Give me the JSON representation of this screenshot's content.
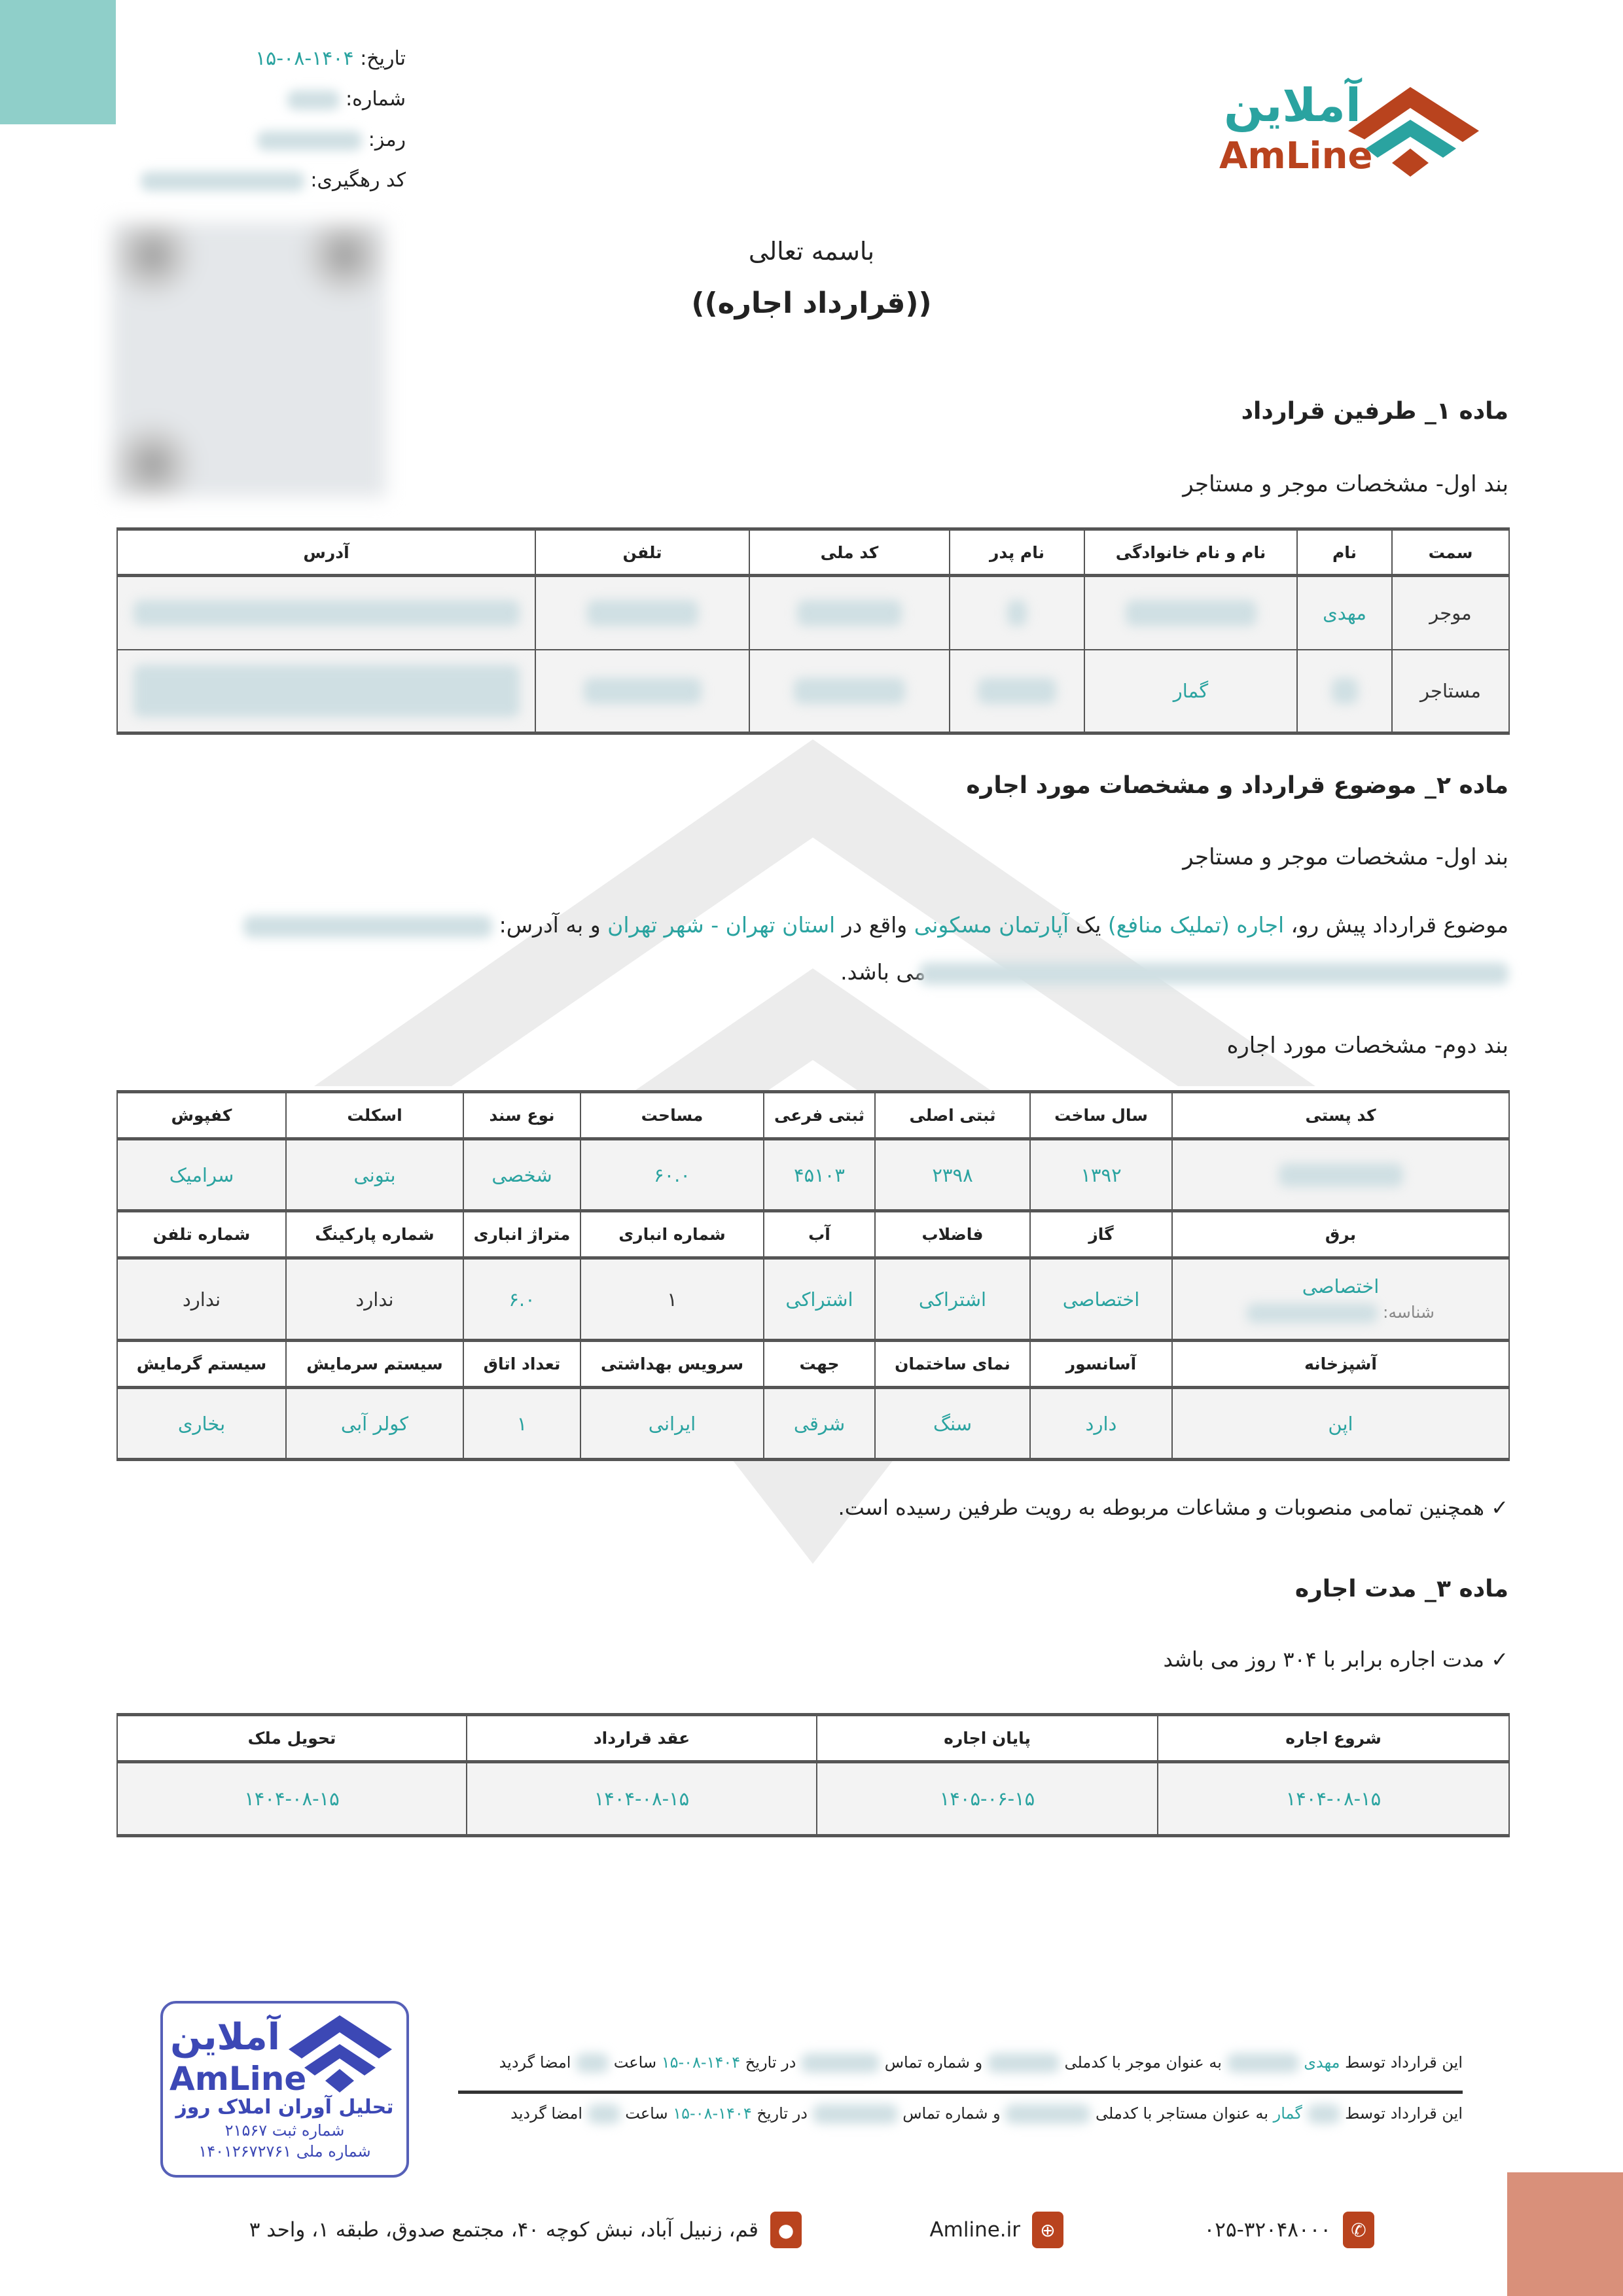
{
  "colors": {
    "accent": "#2aa3a0",
    "brand_orange": "#b9431e",
    "corner_teal": "#8fcfc9",
    "corner_salmon": "#d9907a",
    "stamp_blue": "#3c48b5"
  },
  "logo": {
    "fa": "آملاین",
    "en": "AmLine"
  },
  "meta": {
    "date_label": "تاریخ:",
    "date_value": "۱۴۰۴-۰۸-۱۵",
    "number_label": "شماره:",
    "password_label": "رمز:",
    "tracking_label": "کد رهگیری:"
  },
  "header": {
    "basmala": "باسمه تعالی",
    "title": "((قرارداد اجاره))"
  },
  "article1": {
    "title": "ماده ۱_ طرفین قرارداد",
    "clause": "بند اول- مشخصات موجر و مستاجر",
    "table": {
      "headers": [
        "سمت",
        "نام",
        "نام و نام خانوادگی",
        "نام پدر",
        "کد ملی",
        "تلفن",
        "آدرس"
      ],
      "rows": [
        {
          "role": "موجر",
          "name": "مهدی",
          "full_name": ""
        },
        {
          "role": "مستاجر",
          "name": "",
          "full_name": "گمار"
        }
      ]
    }
  },
  "article2": {
    "title": "ماده ۲_ موضوع قرارداد و مشخصات مورد اجاره",
    "clause1": "بند اول- مشخصات موجر و مستاجر",
    "paragraph": [
      {
        "t": "موضوع قرارداد پیش رو، ",
        "c": "n"
      },
      {
        "t": "اجاره (تملیک منافع)",
        "c": "a"
      },
      {
        "t": " یک ",
        "c": "n"
      },
      {
        "t": "آپارتمان مسکونی",
        "c": "a"
      },
      {
        "t": " واقع در ",
        "c": "n"
      },
      {
        "t": "استان تهران - شهر تهران",
        "c": "a"
      },
      {
        "t": " و به آدرس: ",
        "c": "n"
      }
    ],
    "paragraph_end": "می باشد.",
    "clause2": "بند دوم- مشخصات مورد اجاره",
    "table": [
      {
        "headers": [
          "کد پستی",
          "سال ساخت",
          "ثبتی اصلی",
          "ثبتی فرعی",
          "مساحت",
          "نوع سند",
          "اسکلت",
          "کفپوش"
        ],
        "values": [
          "",
          "۱۳۹۲",
          "۲۳۹۸",
          "۴۵۱۰۳",
          "۶۰.۰",
          "شخصی",
          "بتونی",
          "سرامیک"
        ]
      },
      {
        "headers": [
          "برق",
          "گاز",
          "فاضلاب",
          "آب",
          "شماره انباری",
          "متراژ انباری",
          "شماره پارکینگ",
          "شماره تلفن"
        ],
        "values": [
          "اختصاصی",
          "اختصاصی",
          "اشتراکی",
          "اشتراکی",
          "۱",
          "۶.۰",
          "ندارد",
          "ندارد"
        ],
        "id_label": "شناسه:"
      },
      {
        "headers": [
          "آشپزخانه",
          "آسانسور",
          "نمای ساختمان",
          "جهت",
          "سرویس بهداشتی",
          "تعداد اتاق",
          "سیستم سرمایش",
          "سیستم گرمایش"
        ],
        "values": [
          "اپن",
          "دارد",
          "سنگ",
          "شرقی",
          "ایرانی",
          "۱",
          "کولر آبی",
          "بخاری"
        ]
      }
    ],
    "note": "✓ همچنین تمامی منصوبات و مشاعات مربوطه به رویت طرفین رسیده است."
  },
  "article3": {
    "title": "ماده ۳_ مدت اجاره",
    "duration": "✓ مدت اجاره برابر با ۳۰۴ روز می باشد",
    "table": {
      "headers": [
        "شروع اجاره",
        "پایان اجاره",
        "عقد قرارداد",
        "تحویل ملک"
      ],
      "values": [
        "۱۴۰۴-۰۸-۱۵",
        "۱۴۰۵-۰۶-۱۵",
        "۱۴۰۴-۰۸-۱۵",
        "۱۴۰۴-۰۸-۱۵"
      ]
    }
  },
  "signatures": {
    "landlord": {
      "p1": "این قرارداد توسط ",
      "name": "مهدی",
      "p2": " به عنوان موجر با کدملی ",
      "p3": " و شماره تماس ",
      "p4": " در تاریخ ",
      "date": "۱۴۰۴-۰۸-۱۵",
      "p5": " ساعت ",
      "p6": " امضا گردید"
    },
    "tenant": {
      "p1": "این قرارداد توسط ",
      "name": "گمار",
      "p2": " به عنوان مستاجر با کدملی ",
      "p3": " و شماره تماس ",
      "p4": " در تاریخ ",
      "date": "۱۴۰۴-۰۸-۱۵",
      "p5": " ساعت ",
      "p6": " امضا گردید"
    }
  },
  "stamp": {
    "logo_fa": "آملاین",
    "logo_en": "AmLine",
    "company": "تحلیل آوران املاک روز",
    "reg": "شماره ثبت ۲۱۵۶۷",
    "national": "شماره ملی ۱۴۰۱۲۶۷۲۷۶۱"
  },
  "footer": {
    "phone": "۰۲۵-۳۲۰۴۸۰۰۰",
    "website": "Amline.ir",
    "address": "قم، زنبیل آباد، نبش کوچه ۴۰، مجتمع صدوق، طبقه ۱، واحد ۳"
  }
}
